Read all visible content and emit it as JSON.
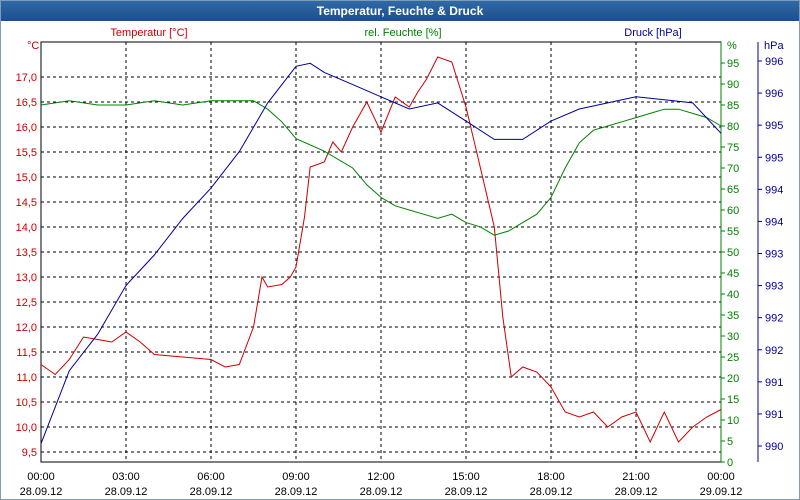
{
  "window": {
    "title": "Temperatur, Feuchte & Druck"
  },
  "chart_data": {
    "type": "line",
    "title": "Temperatur, Feuchte & Druck",
    "grid": true,
    "colors": {
      "temperature": "#cc0000",
      "humidity": "#008000",
      "pressure": "#000099",
      "grid": "#000000",
      "axis": "#000000"
    },
    "x": {
      "ticks_time": [
        "00:00",
        "03:00",
        "06:00",
        "09:00",
        "12:00",
        "15:00",
        "18:00",
        "21:00",
        "00:00"
      ],
      "ticks_date": [
        "28.09.12",
        "28.09.12",
        "28.09.12",
        "28.09.12",
        "28.09.12",
        "28.09.12",
        "28.09.12",
        "28.09.12",
        "29.09.12"
      ],
      "range_hours": [
        0,
        24
      ]
    },
    "axes": {
      "temperature": {
        "unit_label": "°C",
        "title": "Temperatur [°C]",
        "min": 9.3,
        "max": 17.7,
        "ticks": [
          "9,5",
          "10,0",
          "10,5",
          "11,0",
          "11,5",
          "12,0",
          "12,5",
          "13,0",
          "13,5",
          "14,0",
          "14,5",
          "15,0",
          "15,5",
          "16,0",
          "16,5",
          "17,0"
        ]
      },
      "humidity": {
        "unit_label": "%",
        "title": "rel. Feuchte [%]",
        "min": 0,
        "max": 100,
        "ticks": [
          "0",
          "5",
          "10",
          "15",
          "20",
          "25",
          "30",
          "35",
          "40",
          "45",
          "50",
          "55",
          "60",
          "65",
          "70",
          "75",
          "80",
          "85",
          "90",
          "95"
        ]
      },
      "pressure": {
        "unit_label": "hPa",
        "title": "Druck [hPa]",
        "ticks": [
          "990",
          "991",
          "991",
          "992",
          "992",
          "993",
          "993",
          "994",
          "994",
          "995",
          "995",
          "996",
          "996"
        ]
      }
    },
    "series": [
      {
        "name": "Temperatur [°C]",
        "axis": "temperature",
        "x": [
          0,
          0.5,
          1,
          1.5,
          2,
          2.5,
          3,
          3.5,
          4,
          5,
          6,
          6.5,
          7,
          7.5,
          7.8,
          8,
          8.5,
          8.8,
          9,
          9.3,
          9.5,
          10,
          10.3,
          10.6,
          11,
          11.5,
          12,
          12.5,
          13,
          13.3,
          13.6,
          14,
          14.5,
          15,
          15.5,
          16,
          16.3,
          16.6,
          17,
          17.5,
          18,
          18.5,
          19,
          19.5,
          20,
          20.5,
          21,
          21.5,
          22,
          22.5,
          23,
          23.5,
          24
        ],
        "values": [
          11.25,
          11.05,
          11.35,
          11.8,
          11.75,
          11.7,
          11.9,
          11.7,
          11.45,
          11.4,
          11.35,
          11.2,
          11.25,
          12.0,
          13.0,
          12.8,
          12.85,
          13.0,
          13.2,
          14.2,
          15.2,
          15.3,
          15.7,
          15.5,
          16.0,
          16.5,
          15.9,
          16.6,
          16.4,
          16.7,
          16.95,
          17.4,
          17.3,
          16.4,
          15.2,
          14.0,
          12.2,
          11.0,
          11.2,
          11.1,
          10.8,
          10.3,
          10.2,
          10.3,
          10.0,
          10.2,
          10.3,
          9.7,
          10.3,
          9.7,
          10.0,
          10.2,
          10.35
        ]
      },
      {
        "name": "rel. Feuchte [%]",
        "axis": "humidity",
        "x": [
          0,
          1,
          2,
          3,
          4,
          5,
          6,
          7,
          7.5,
          8,
          8.5,
          9,
          10,
          11,
          11.5,
          12,
          12.5,
          13,
          13.5,
          14,
          14.5,
          15,
          15.5,
          16,
          16.5,
          17,
          17.5,
          18,
          18.5,
          19,
          19.5,
          20,
          20.5,
          21,
          21.5,
          22,
          22.5,
          23,
          23.5,
          24
        ],
        "values": [
          85,
          86,
          85,
          85,
          86,
          85,
          86,
          86,
          86,
          84,
          81,
          77,
          74,
          70,
          66,
          63,
          61,
          60,
          59,
          58,
          59,
          57,
          56,
          54,
          55,
          57,
          59,
          63,
          70,
          76,
          79,
          80,
          81,
          82,
          83,
          84,
          84,
          83,
          82,
          80
        ]
      },
      {
        "name": "Druck [hPa]",
        "axis": "pressure",
        "x": [
          0,
          1,
          2,
          3,
          4,
          5,
          6,
          7,
          8,
          9,
          9.5,
          10,
          11,
          12,
          13,
          14,
          15,
          16,
          17,
          18,
          19,
          20,
          21,
          22,
          23,
          24
        ],
        "values": [
          990,
          991.2,
          991.8,
          992.6,
          993.1,
          993.7,
          994.2,
          994.8,
          995.6,
          996.2,
          996.25,
          996.1,
          995.9,
          995.7,
          995.5,
          995.6,
          995.3,
          995.0,
          995.0,
          995.3,
          995.5,
          995.6,
          995.7,
          995.65,
          995.6,
          995.1
        ]
      }
    ]
  }
}
